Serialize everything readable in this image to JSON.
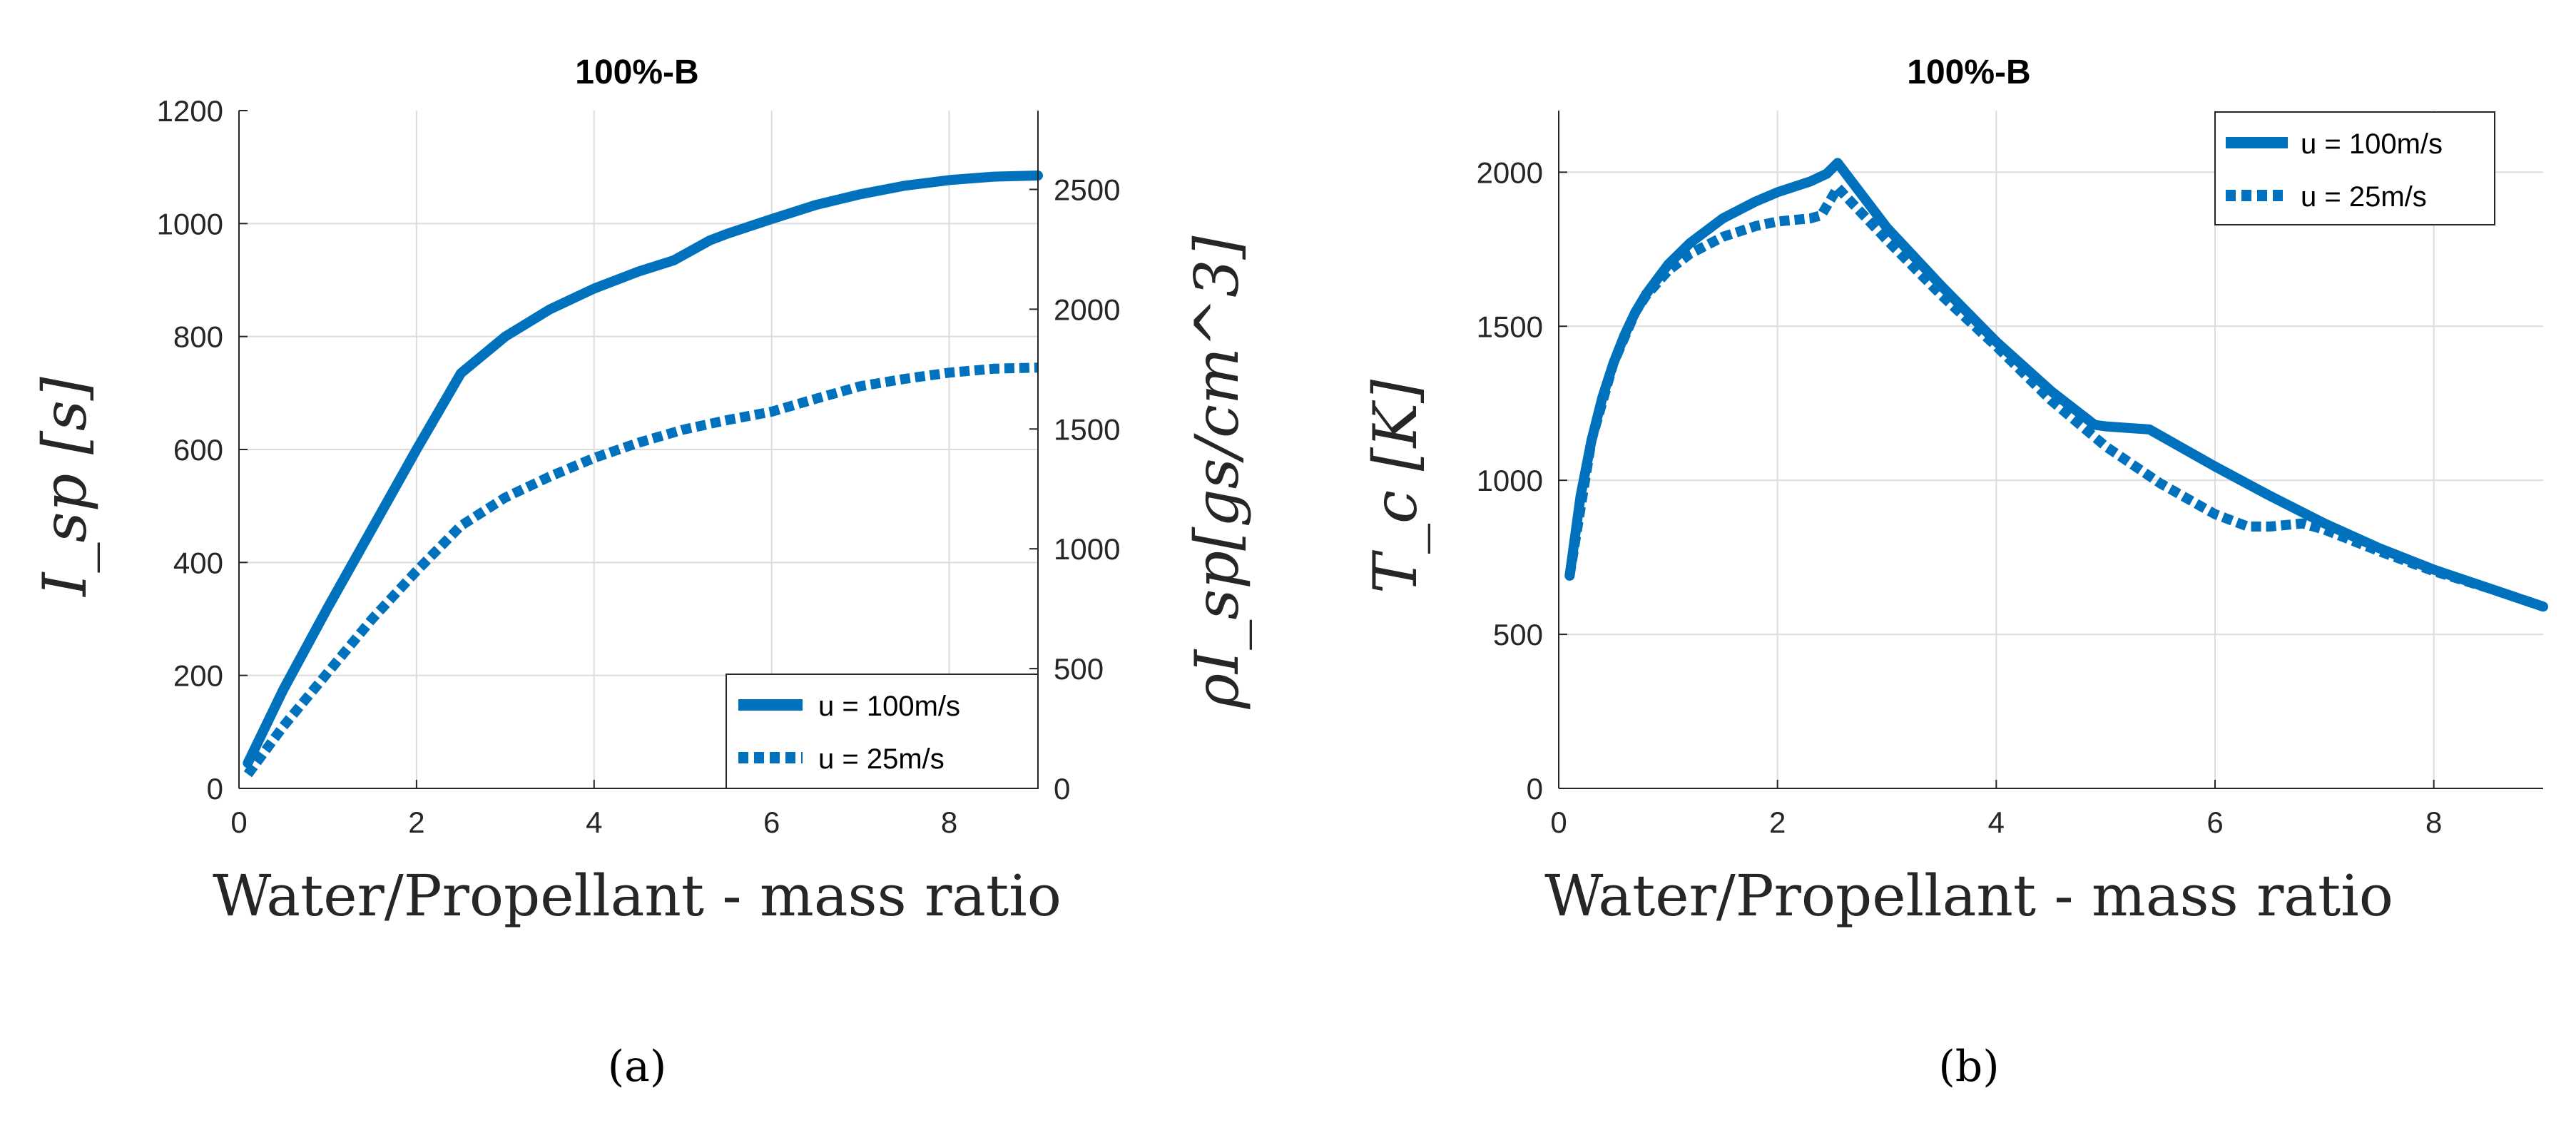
{
  "chart_data": [
    {
      "type": "line",
      "panel_label": "(a)",
      "title": "100%-B",
      "xlabel": "Water/Propellant - mass ratio",
      "ylabel": "I_sp [s]",
      "ylabel_right": "ρI_sp[gs/cm^3]",
      "xlim": [
        0,
        9
      ],
      "ylim": [
        0,
        1200
      ],
      "ylim_right": [
        0,
        2829
      ],
      "xticks": [
        "0",
        "2",
        "4",
        "6",
        "8"
      ],
      "yticks": [
        "0",
        "200",
        "400",
        "600",
        "800",
        "1000",
        "1200"
      ],
      "yticks_right": [
        "0",
        "500",
        "1000",
        "1500",
        "2000",
        "2500"
      ],
      "grid": true,
      "legend_position": "bottom-right",
      "series": [
        {
          "name": "u = 100m/s",
          "style": "solid",
          "x": [
            0.1,
            0.5,
            1.0,
            1.5,
            2.0,
            2.5,
            3.0,
            3.5,
            4.0,
            4.5,
            4.9,
            5.3,
            5.5,
            6.0,
            6.5,
            7.0,
            7.5,
            8.0,
            8.5,
            9.0
          ],
          "y": [
            45,
            175,
            320,
            460,
            600,
            735,
            800,
            848,
            885,
            915,
            935,
            970,
            982,
            1008,
            1033,
            1052,
            1067,
            1077,
            1083,
            1085
          ]
        },
        {
          "name": "u = 25m/s",
          "style": "dotted",
          "x": [
            0.1,
            0.5,
            1.0,
            1.5,
            2.0,
            2.5,
            3.0,
            3.5,
            4.0,
            4.5,
            5.0,
            5.5,
            6.0,
            6.5,
            7.0,
            7.5,
            8.0,
            8.5,
            9.0
          ],
          "y": [
            25,
            110,
            205,
            300,
            385,
            465,
            515,
            552,
            585,
            612,
            635,
            652,
            667,
            690,
            712,
            725,
            736,
            743,
            745
          ]
        }
      ]
    },
    {
      "type": "line",
      "panel_label": "(b)",
      "title": "100%-B",
      "xlabel": "Water/Propellant - mass ratio",
      "ylabel": "T_c [K]",
      "xlim": [
        0,
        9
      ],
      "ylim": [
        0,
        2200
      ],
      "xticks": [
        "0",
        "2",
        "4",
        "6",
        "8"
      ],
      "yticks": [
        "0",
        "500",
        "1000",
        "1500",
        "2000"
      ],
      "grid": true,
      "legend_position": "top-right",
      "series": [
        {
          "name": "u = 100m/s",
          "style": "solid",
          "x": [
            0.1,
            0.2,
            0.3,
            0.4,
            0.5,
            0.6,
            0.7,
            0.8,
            1.0,
            1.2,
            1.5,
            1.8,
            2.0,
            2.3,
            2.45,
            2.55,
            3.0,
            3.5,
            4.0,
            4.5,
            4.9,
            5.0,
            5.4,
            6.0,
            6.5,
            7.0,
            7.5,
            8.0,
            8.5,
            9.0
          ],
          "y": [
            690,
            950,
            1130,
            1270,
            1380,
            1470,
            1545,
            1605,
            1700,
            1770,
            1850,
            1905,
            1935,
            1970,
            1995,
            2030,
            1820,
            1630,
            1450,
            1290,
            1180,
            1175,
            1165,
            1045,
            950,
            860,
            780,
            710,
            650,
            590
          ]
        },
        {
          "name": "u = 25m/s",
          "style": "dotted",
          "x": [
            0.1,
            0.3,
            0.5,
            0.7,
            0.8,
            1.0,
            1.2,
            1.5,
            1.8,
            2.0,
            2.3,
            2.4,
            2.55,
            3.0,
            3.5,
            4.0,
            4.5,
            5.0,
            5.5,
            6.0,
            6.3,
            6.5,
            6.8,
            7.0,
            7.5,
            8.0,
            8.5,
            9.0
          ],
          "y": [
            690,
            1130,
            1380,
            1545,
            1600,
            1680,
            1735,
            1790,
            1825,
            1840,
            1850,
            1860,
            1950,
            1780,
            1600,
            1435,
            1260,
            1110,
            990,
            890,
            850,
            850,
            860,
            840,
            770,
            705,
            650,
            590
          ]
        }
      ]
    }
  ]
}
